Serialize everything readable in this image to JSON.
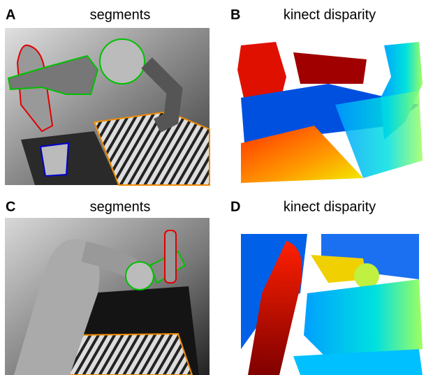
{
  "panels": [
    {
      "letter": "A",
      "title": "segments"
    },
    {
      "letter": "B",
      "title": "kinect disparity"
    },
    {
      "letter": "C",
      "title": "segments"
    },
    {
      "letter": "D",
      "title": "kinect disparity"
    }
  ]
}
